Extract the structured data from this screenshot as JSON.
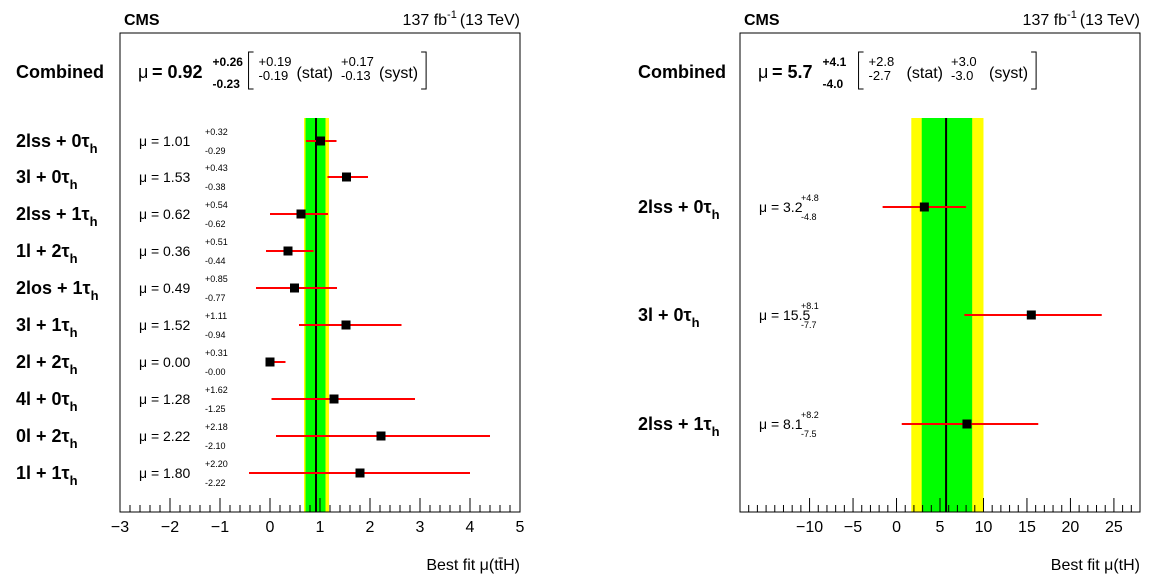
{
  "chart_data": [
    {
      "type": "scatter",
      "experiment": "CMS",
      "luminosity": "137 fb",
      "lumi_exp": "-1",
      "energy": "(13 TeV)",
      "xlabel": "Best fit μ(tt̄H)",
      "xlim": [
        -3.0,
        5.0
      ],
      "major_ticks": [
        -3,
        -2,
        -1,
        0,
        1,
        2,
        3,
        4,
        5
      ],
      "tick_labels": [
        "−3",
        "−2",
        "−1",
        "0",
        "1",
        "2",
        "3",
        "4",
        "5"
      ],
      "combined": {
        "label": "Combined",
        "mu_text": "μ",
        "value_text": "= 0.92",
        "up": "+0.26",
        "down": "-0.23",
        "stat_up": "+0.19",
        "stat_down": "-0.19",
        "stat_label": "(stat)",
        "syst_up": "+0.17",
        "syst_down": "-0.13",
        "syst_label": "(syst)",
        "value": 0.92,
        "band_1sigma": [
          0.71,
          1.11
        ],
        "band_2sigma": [
          0.68,
          1.18
        ]
      },
      "categories": [
        {
          "base": "2lss + 0τ",
          "sub": "h",
          "mu_text": "μ = 1.01",
          "up": "+0.32",
          "down": "-0.29",
          "value": 1.01,
          "err_up": 0.32,
          "err_down": 0.29
        },
        {
          "base": "3l + 0τ",
          "sub": "h",
          "mu_text": "μ = 1.53",
          "up": "+0.43",
          "down": "-0.38",
          "value": 1.53,
          "err_up": 0.43,
          "err_down": 0.38
        },
        {
          "base": "2lss + 1τ",
          "sub": "h",
          "mu_text": "μ = 0.62",
          "up": "+0.54",
          "down": "-0.62",
          "value": 0.62,
          "err_up": 0.54,
          "err_down": 0.62
        },
        {
          "base": "1l + 2τ",
          "sub": "h",
          "mu_text": "μ = 0.36",
          "up": "+0.51",
          "down": "-0.44",
          "value": 0.36,
          "err_up": 0.51,
          "err_down": 0.44
        },
        {
          "base": "2los + 1τ",
          "sub": "h",
          "mu_text": "μ = 0.49",
          "up": "+0.85",
          "down": "-0.77",
          "value": 0.49,
          "err_up": 0.85,
          "err_down": 0.77
        },
        {
          "base": "3l + 1τ",
          "sub": "h",
          "mu_text": "μ = 1.52",
          "up": "+1.11",
          "down": "-0.94",
          "value": 1.52,
          "err_up": 1.11,
          "err_down": 0.94
        },
        {
          "base": "2l + 2τ",
          "sub": "h",
          "mu_text": "μ = 0.00",
          "up": "+0.31",
          "down": "-0.00",
          "value": 0.0,
          "err_up": 0.31,
          "err_down": 0.0
        },
        {
          "base": "4l + 0τ",
          "sub": "h",
          "mu_text": "μ = 1.28",
          "up": "+1.62",
          "down": "-1.25",
          "value": 1.28,
          "err_up": 1.62,
          "err_down": 1.25
        },
        {
          "base": "0l + 2τ",
          "sub": "h",
          "mu_text": "μ = 2.22",
          "up": "+2.18",
          "down": "-2.10",
          "value": 2.22,
          "err_up": 2.18,
          "err_down": 2.1
        },
        {
          "base": "1l + 1τ",
          "sub": "h",
          "mu_text": "μ = 1.80",
          "up": "+2.20",
          "down": "-2.22",
          "value": 1.8,
          "err_up": 2.2,
          "err_down": 2.22
        }
      ],
      "colors": {
        "band_1sigma": "#00ff00",
        "band_2sigma": "#ffff00",
        "error_bar": "#ff0000",
        "marker": "#000000"
      }
    },
    {
      "type": "scatter",
      "experiment": "CMS",
      "luminosity": "137 fb",
      "lumi_exp": "-1",
      "energy": "(13 TeV)",
      "xlabel": "Best fit μ(tH)",
      "xlim": [
        -18.0,
        28.0
      ],
      "major_ticks": [
        -10,
        -5,
        0,
        5,
        10,
        15,
        20,
        25
      ],
      "tick_labels": [
        "−10",
        "−5",
        "0",
        "5",
        "10",
        "15",
        "20",
        "25"
      ],
      "combined": {
        "label": "Combined",
        "mu_text": "μ",
        "value_text": "= 5.7",
        "up": "+4.1",
        "down": "-4.0",
        "stat_up": "+2.8",
        "stat_down": "-2.7",
        "stat_label": "(stat)",
        "syst_up": "+3.0",
        "syst_down": "-3.0",
        "syst_label": "(syst)",
        "value": 5.7,
        "band_1sigma": [
          2.9,
          8.7
        ],
        "band_2sigma": [
          1.7,
          10.0
        ]
      },
      "categories": [
        {
          "base": "2lss + 0τ",
          "sub": "h",
          "mu_text": "μ = 3.2",
          "up": "+4.8",
          "down": "-4.8",
          "value": 3.2,
          "err_up": 4.8,
          "err_down": 4.8
        },
        {
          "base": "3l + 0τ",
          "sub": "h",
          "mu_text": "μ = 15.5",
          "up": "+8.1",
          "down": "-7.7",
          "value": 15.5,
          "err_up": 8.1,
          "err_down": 7.7
        },
        {
          "base": "2lss + 1τ",
          "sub": "h",
          "mu_text": "μ = 8.1",
          "up": "+8.2",
          "down": "-7.5",
          "value": 8.1,
          "err_up": 8.2,
          "err_down": 7.5
        }
      ],
      "colors": {
        "band_1sigma": "#00ff00",
        "band_2sigma": "#ffff00",
        "error_bar": "#ff0000",
        "marker": "#000000"
      }
    }
  ]
}
